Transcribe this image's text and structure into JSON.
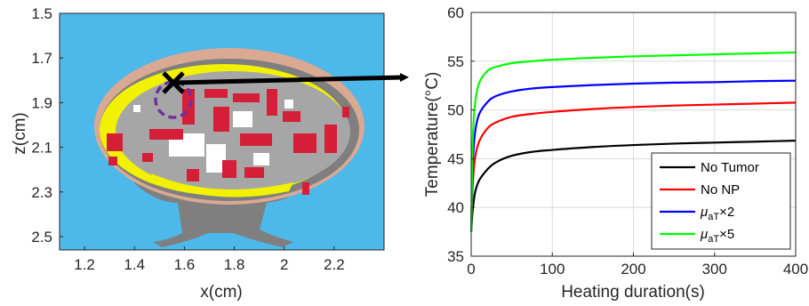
{
  "colors": {
    "background": "#4db8ea",
    "skin": "#d9a993",
    "fat": "#f2f200",
    "tissue": "#a6a6a6",
    "bone": "#7f7f7f",
    "vessel": "#d51f38",
    "marker": "#000000",
    "tumor_ring": "#7030a0"
  },
  "chart_data": [
    {
      "type": "heatmap",
      "description_only": false,
      "xlabel": "x(cm)",
      "ylabel": "z(cm)",
      "xlim": [
        1.1,
        2.4
      ],
      "ylim": [
        1.5,
        2.56
      ],
      "y_reversed": true,
      "xticks": [
        "1.2",
        "1.4",
        "1.6",
        "1.8",
        "2",
        "2.2"
      ],
      "xtick_values": [
        1.2,
        1.4,
        1.6,
        1.8,
        2.0,
        2.2
      ],
      "yticks": [
        "1.5",
        "1.7",
        "1.9",
        "2.1",
        "2.3",
        "2.5"
      ],
      "ytick_values": [
        1.5,
        1.7,
        1.9,
        2.1,
        2.3,
        2.5
      ],
      "marker": {
        "x": 1.55,
        "z": 1.82,
        "symbol": "x"
      },
      "tumor_center": {
        "x": 1.55,
        "z": 1.87
      }
    },
    {
      "type": "line",
      "xlabel": "Heating duration(s)",
      "ylabel": "Temperature(°C)",
      "xlim": [
        0,
        400
      ],
      "ylim": [
        35,
        60
      ],
      "xticks": [
        "0",
        "100",
        "200",
        "300",
        "400"
      ],
      "xtick_values": [
        0,
        100,
        200,
        300,
        400
      ],
      "yticks": [
        "35",
        "40",
        "45",
        "50",
        "55",
        "60"
      ],
      "ytick_values": [
        35,
        40,
        45,
        50,
        55,
        60
      ],
      "grid": true,
      "legend_position": "bottom-right",
      "x": [
        0,
        2,
        5,
        10,
        20,
        30,
        50,
        75,
        100,
        150,
        200,
        250,
        300,
        350,
        400
      ],
      "series": [
        {
          "name": "No Tumor",
          "label_main": "No Tumor",
          "label_sub": "",
          "label_tail": "",
          "color": "#000000",
          "values": [
            37.5,
            39.8,
            41.6,
            42.8,
            43.9,
            44.6,
            45.3,
            45.7,
            45.9,
            46.2,
            46.4,
            46.55,
            46.65,
            46.75,
            46.85
          ]
        },
        {
          "name": "No NP",
          "label_main": "No NP",
          "label_sub": "",
          "label_tail": "",
          "color": "#ff0000",
          "values": [
            37.5,
            42.5,
            45.2,
            46.8,
            48.1,
            48.7,
            49.3,
            49.6,
            49.8,
            50.1,
            50.3,
            50.45,
            50.55,
            50.65,
            50.75
          ]
        },
        {
          "name": "μaT×2",
          "label_main": "μ",
          "label_sub": "aT",
          "label_tail": "×2",
          "color": "#0000ff",
          "values": [
            37.5,
            44.5,
            47.8,
            49.6,
            50.8,
            51.4,
            51.9,
            52.2,
            52.35,
            52.55,
            52.7,
            52.8,
            52.85,
            52.95,
            53.0
          ]
        },
        {
          "name": "μaT×5",
          "label_main": "μ",
          "label_sub": "aT",
          "label_tail": "×5",
          "color": "#00ff00",
          "values": [
            37.5,
            47.0,
            50.8,
            52.8,
            54.0,
            54.4,
            54.8,
            55.0,
            55.15,
            55.35,
            55.5,
            55.6,
            55.7,
            55.8,
            55.9
          ]
        }
      ]
    }
  ]
}
